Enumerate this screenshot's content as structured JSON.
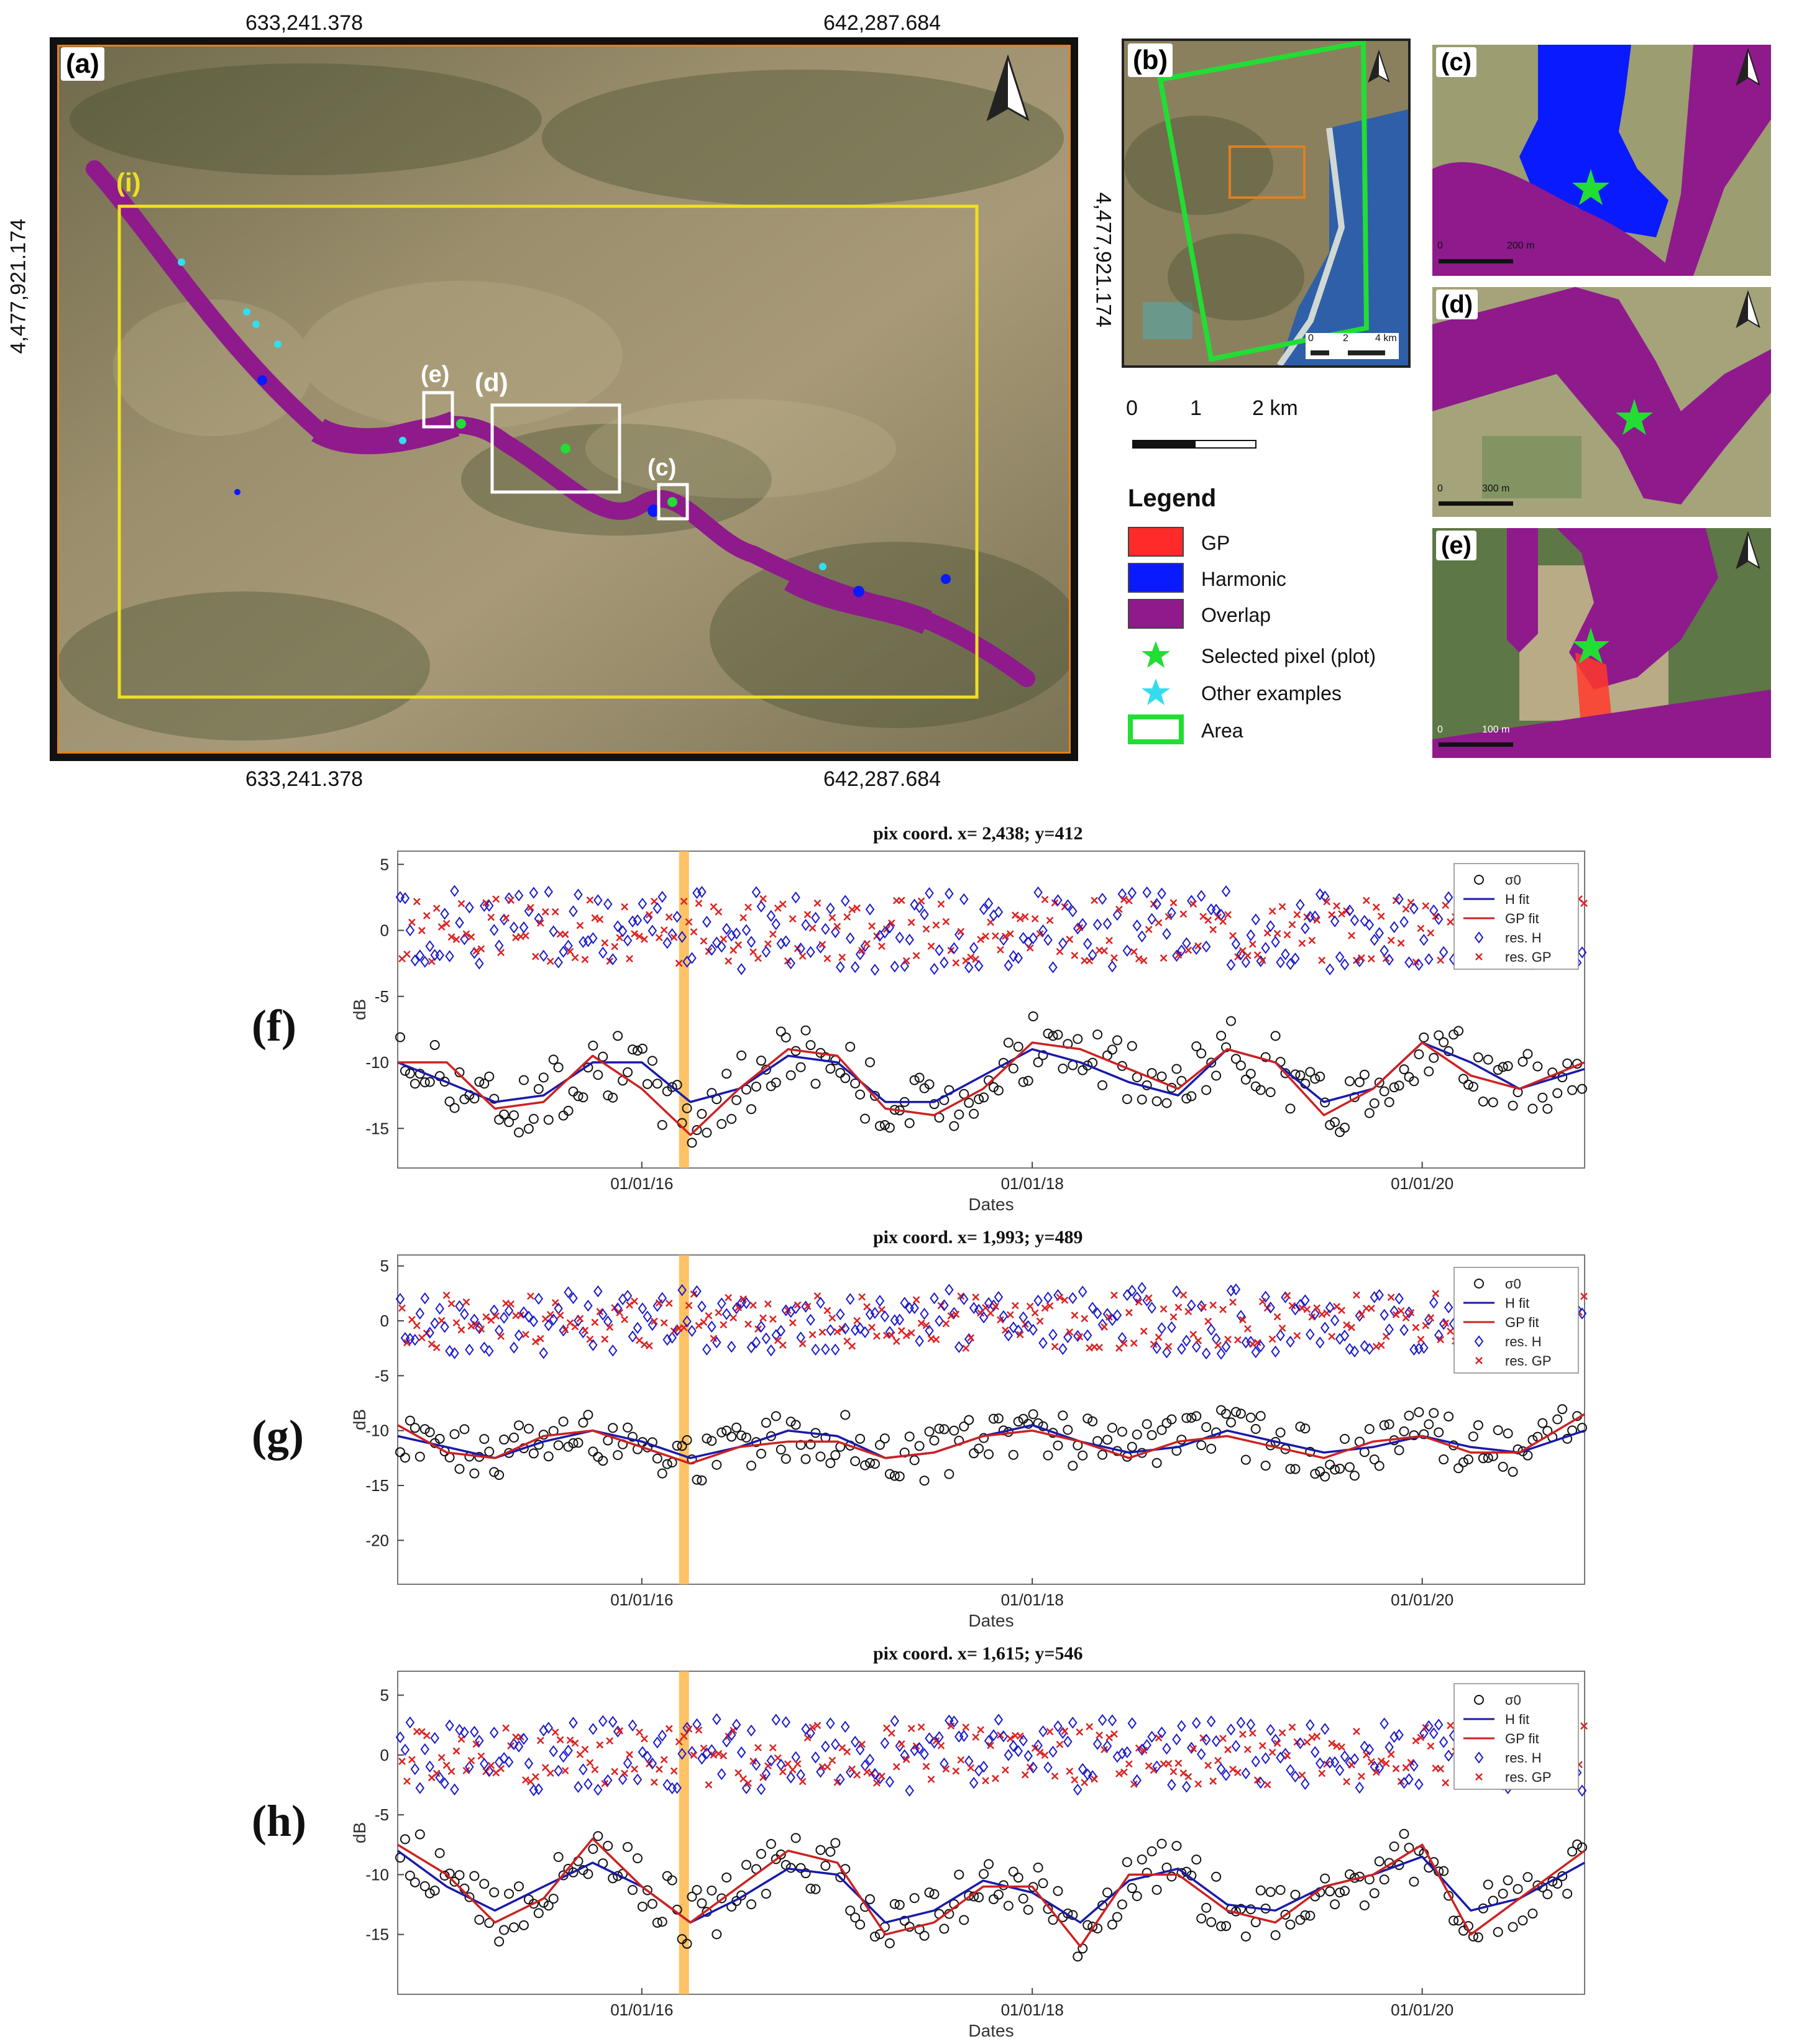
{
  "map": {
    "panel_a": {
      "label": "(a)"
    },
    "panel_b": {
      "label": "(b)"
    },
    "panel_c": {
      "label": "(c)",
      "scale": "200 m",
      "scale_zero": "0"
    },
    "panel_d": {
      "label": "(d)",
      "scale": "300 m",
      "scale_zero": "0"
    },
    "panel_e": {
      "label": "(e)",
      "scale": "100 m",
      "scale_zero": "0"
    },
    "panel_b_scale": {
      "zero": "0",
      "mid": "2",
      "end": "4 km"
    },
    "inset_labels": {
      "i": "(i)",
      "c": "(c)",
      "d": "(d)",
      "e": "(e)"
    },
    "coords": {
      "top_left": "633,241.378",
      "top_right": "642,287.684",
      "bottom_left": "633,241.378",
      "bottom_right": "642,287.684",
      "left": "4,477,921.174",
      "right": "4,477,921.174"
    },
    "scale_bar": {
      "zero": "0",
      "one": "1",
      "two": "2 km"
    },
    "legend": {
      "title": "Legend",
      "items": [
        {
          "label": "GP",
          "color": "#ff2a2a"
        },
        {
          "label": "Harmonic",
          "color": "#0a1aff"
        },
        {
          "label": "Overlap",
          "color": "#8e1a8c"
        },
        {
          "label": "Selected pixel (plot)",
          "color": "#22dd33"
        },
        {
          "label": "Other examples",
          "color": "#33ddee"
        },
        {
          "label": "Area",
          "color": "#22dd33"
        }
      ]
    },
    "colors": {
      "gp": "#ff2a2a",
      "harmonic": "#0a1aff",
      "overlap": "#8e1a8c",
      "yellow_box": "#f0e020",
      "orange_frame": "#e08020"
    }
  },
  "charts": {
    "f": {
      "tag": "(f)",
      "title": "pix coord. x= 2,438; y=412"
    },
    "g": {
      "tag": "(g)",
      "title": "pix coord. x= 1,993; y=489"
    },
    "h": {
      "tag": "(h)",
      "title": "pix coord. x= 1,615; y=546"
    }
  },
  "chart_data": [
    {
      "type": "scatter",
      "title": "pix coord. x= 2,438; y=412",
      "xlabel": "Dates",
      "ylabel": "dB",
      "x_range": [
        "2014-10-01",
        "2020-10-31"
      ],
      "x_ticks": [
        "01/01/16",
        "01/01/18",
        "01/01/20"
      ],
      "y_ticks": [
        5,
        0,
        -5,
        -10,
        -15
      ],
      "ylim": [
        -18,
        6
      ],
      "highlight_date": "2016-03-20",
      "legend": [
        "σ0",
        "H fit",
        "GP fit",
        "res. H",
        "res. GP"
      ],
      "legend_position": "top-right",
      "series": [
        {
          "name": "H fit",
          "color": "#1a1aaa",
          "kind": "line",
          "x": [
            "2014-10-01",
            "2015-01-01",
            "2015-04-01",
            "2015-07-01",
            "2015-10-01",
            "2016-01-01",
            "2016-04-01",
            "2016-07-01",
            "2016-10-01",
            "2017-01-01",
            "2017-04-01",
            "2017-07-01",
            "2017-10-01",
            "2018-01-01",
            "2018-04-01",
            "2018-07-01",
            "2018-10-01",
            "2019-01-01",
            "2019-04-01",
            "2019-07-01",
            "2019-10-01",
            "2020-01-01",
            "2020-04-01",
            "2020-07-01",
            "2020-10-31"
          ],
          "y": [
            -10,
            -11.5,
            -13,
            -12.5,
            -10,
            -10,
            -13,
            -12,
            -9.5,
            -10,
            -13,
            -13,
            -11,
            -9,
            -10,
            -11.5,
            -12.5,
            -9,
            -10,
            -13,
            -12,
            -8.5,
            -10,
            -12,
            -10.5
          ]
        },
        {
          "name": "GP fit",
          "color": "#cc2222",
          "kind": "line",
          "x": [
            "2014-10-01",
            "2015-01-01",
            "2015-04-01",
            "2015-07-01",
            "2015-10-01",
            "2016-01-01",
            "2016-04-01",
            "2016-07-01",
            "2016-10-01",
            "2017-01-01",
            "2017-04-01",
            "2017-07-01",
            "2017-10-01",
            "2018-01-01",
            "2018-04-01",
            "2018-07-01",
            "2018-10-01",
            "2019-01-01",
            "2019-04-01",
            "2019-07-01",
            "2019-10-01",
            "2020-01-01",
            "2020-04-01",
            "2020-07-01",
            "2020-10-31"
          ],
          "y": [
            -10,
            -10,
            -13.5,
            -13,
            -9.5,
            -12,
            -15.5,
            -12,
            -9,
            -9.5,
            -13.5,
            -14,
            -12,
            -8.5,
            -9,
            -10.5,
            -12,
            -9,
            -10,
            -14,
            -12,
            -8.5,
            -11,
            -12,
            -10
          ]
        }
      ]
    },
    {
      "type": "scatter",
      "title": "pix coord. x= 1,993; y=489",
      "xlabel": "Dates",
      "ylabel": "dB",
      "x_range": [
        "2014-10-01",
        "2020-10-31"
      ],
      "x_ticks": [
        "01/01/16",
        "01/01/18",
        "01/01/20"
      ],
      "y_ticks": [
        5,
        0,
        -5,
        -10,
        -15,
        -20
      ],
      "ylim": [
        -24,
        6
      ],
      "highlight_date": "2016-03-20",
      "legend": [
        "σ0",
        "H fit",
        "GP fit",
        "res. H",
        "res. GP"
      ],
      "legend_position": "top-right",
      "series": [
        {
          "name": "H fit",
          "color": "#1a1aaa",
          "kind": "line",
          "x": [
            "2014-10-01",
            "2015-01-01",
            "2015-04-01",
            "2015-07-01",
            "2015-10-01",
            "2016-01-01",
            "2016-04-01",
            "2016-07-01",
            "2016-10-01",
            "2017-01-01",
            "2017-04-01",
            "2017-07-01",
            "2017-10-01",
            "2018-01-01",
            "2018-04-01",
            "2018-07-01",
            "2018-10-01",
            "2019-01-01",
            "2019-04-01",
            "2019-07-01",
            "2019-10-01",
            "2020-01-01",
            "2020-04-01",
            "2020-07-01",
            "2020-10-31"
          ],
          "y": [
            -10.5,
            -11.5,
            -12.5,
            -11,
            -10,
            -11,
            -12.5,
            -11.5,
            -10,
            -10.5,
            -12.5,
            -12,
            -10.5,
            -9.5,
            -11,
            -12,
            -11.5,
            -10,
            -11,
            -12,
            -11.5,
            -10.5,
            -11.5,
            -12,
            -10
          ]
        },
        {
          "name": "GP fit",
          "color": "#cc2222",
          "kind": "line",
          "x": [
            "2014-10-01",
            "2015-01-01",
            "2015-04-01",
            "2015-07-01",
            "2015-10-01",
            "2016-01-01",
            "2016-04-01",
            "2016-07-01",
            "2016-10-01",
            "2017-01-01",
            "2017-04-01",
            "2017-07-01",
            "2017-10-01",
            "2018-01-01",
            "2018-04-01",
            "2018-07-01",
            "2018-10-01",
            "2019-01-01",
            "2019-04-01",
            "2019-07-01",
            "2019-10-01",
            "2020-01-01",
            "2020-04-01",
            "2020-07-01",
            "2020-10-31"
          ],
          "y": [
            -9.5,
            -12,
            -12.5,
            -10.5,
            -10,
            -11.5,
            -13,
            -11.5,
            -11,
            -11,
            -12.5,
            -12,
            -10.5,
            -10,
            -11,
            -12.5,
            -11,
            -10.5,
            -11.5,
            -12.5,
            -11,
            -10.5,
            -12,
            -12,
            -8.5
          ]
        }
      ]
    },
    {
      "type": "scatter",
      "title": "pix coord. x= 1,615; y=546",
      "xlabel": "Dates",
      "ylabel": "dB",
      "x_range": [
        "2014-10-01",
        "2020-10-31"
      ],
      "x_ticks": [
        "01/01/16",
        "01/01/18",
        "01/01/20"
      ],
      "y_ticks": [
        5,
        0,
        -5,
        -10,
        -15
      ],
      "ylim": [
        -20,
        7
      ],
      "highlight_date": "2016-03-20",
      "legend": [
        "σ0",
        "H fit",
        "GP fit",
        "res. H",
        "res. GP"
      ],
      "legend_position": "top-right",
      "series": [
        {
          "name": "H fit",
          "color": "#1a1aaa",
          "kind": "line",
          "x": [
            "2014-10-01",
            "2015-01-01",
            "2015-04-01",
            "2015-07-01",
            "2015-10-01",
            "2016-01-01",
            "2016-04-01",
            "2016-07-01",
            "2016-10-01",
            "2017-01-01",
            "2017-04-01",
            "2017-07-01",
            "2017-10-01",
            "2018-01-01",
            "2018-04-01",
            "2018-07-01",
            "2018-10-01",
            "2019-01-01",
            "2019-04-01",
            "2019-07-01",
            "2019-10-01",
            "2020-01-01",
            "2020-04-01",
            "2020-07-01",
            "2020-10-31"
          ],
          "y": [
            -8,
            -11,
            -13,
            -11,
            -9,
            -11,
            -14,
            -12,
            -9.5,
            -10,
            -14,
            -13,
            -10.5,
            -11.5,
            -14,
            -10.5,
            -9.5,
            -12.5,
            -13,
            -11,
            -10,
            -8.5,
            -13,
            -12,
            -9
          ]
        },
        {
          "name": "GP fit",
          "color": "#cc2222",
          "kind": "line",
          "x": [
            "2014-10-01",
            "2015-01-01",
            "2015-04-01",
            "2015-07-01",
            "2015-10-01",
            "2016-01-01",
            "2016-04-01",
            "2016-07-01",
            "2016-10-01",
            "2017-01-01",
            "2017-04-01",
            "2017-07-01",
            "2017-10-01",
            "2018-01-01",
            "2018-04-01",
            "2018-07-01",
            "2018-10-01",
            "2019-01-01",
            "2019-04-01",
            "2019-07-01",
            "2019-10-01",
            "2020-01-01",
            "2020-04-01",
            "2020-07-01",
            "2020-10-31"
          ],
          "y": [
            -7.5,
            -10,
            -14,
            -12,
            -7,
            -11,
            -14,
            -11,
            -8,
            -9,
            -15,
            -14,
            -11,
            -11,
            -16,
            -10,
            -10,
            -13,
            -14,
            -11,
            -10,
            -7.5,
            -15,
            -12,
            -8
          ]
        }
      ]
    }
  ]
}
